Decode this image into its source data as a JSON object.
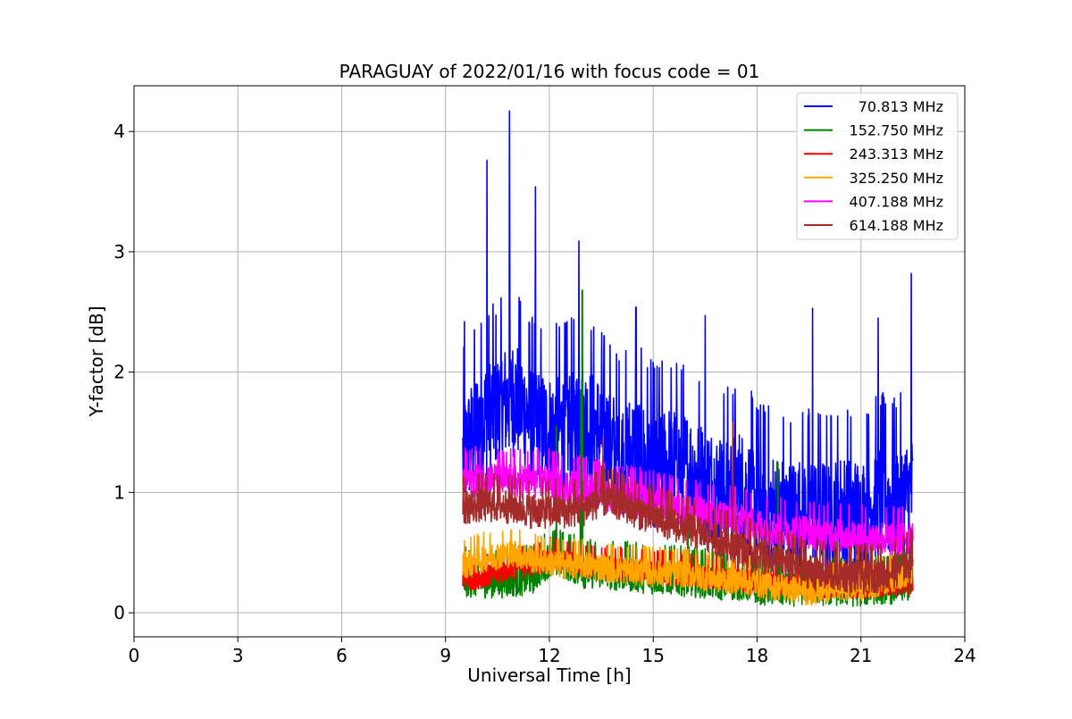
{
  "chart_data": {
    "type": "line",
    "title": "PARAGUAY of 2022/01/16 with focus code = 01",
    "xlabel": "Universal Time [h]",
    "ylabel": "Y-factor [dB]",
    "xlim": [
      0,
      24
    ],
    "ylim": [
      -0.2,
      4.38
    ],
    "xticks": [
      "0",
      "3",
      "6",
      "9",
      "12",
      "15",
      "18",
      "21",
      "24"
    ],
    "xtick_values": [
      0,
      3,
      6,
      9,
      12,
      15,
      18,
      21,
      24
    ],
    "yticks": [
      "0",
      "1",
      "2",
      "3",
      "4"
    ],
    "ytick_values": [
      0,
      1,
      2,
      3,
      4
    ],
    "grid": true,
    "legend_position": "top-right",
    "x_range_data": [
      9.5,
      22.5
    ],
    "series": [
      {
        "name": "70.813 MHz",
        "color": "#0000ff",
        "x": [
          9.5,
          10.0,
          10.5,
          11.0,
          11.5,
          12.0,
          12.5,
          13.0,
          13.5,
          14.0,
          14.5,
          15.0,
          15.5,
          16.0,
          16.5,
          17.0,
          17.5,
          18.0,
          18.5,
          19.0,
          19.5,
          20.0,
          20.5,
          21.0,
          21.5,
          22.0,
          22.5
        ],
        "values": [
          1.3,
          1.6,
          1.7,
          1.8,
          1.6,
          1.5,
          1.55,
          1.6,
          1.5,
          1.3,
          1.35,
          1.2,
          1.25,
          1.2,
          1.1,
          1.0,
          1.05,
          0.9,
          0.85,
          0.8,
          0.85,
          0.8,
          0.85,
          0.8,
          0.95,
          0.9,
          1.0
        ],
        "peaks": [
          [
            9.55,
            2.42
          ],
          [
            10.2,
            3.76
          ],
          [
            10.85,
            4.17
          ],
          [
            11.6,
            3.54
          ],
          [
            12.85,
            3.09
          ],
          [
            14.5,
            2.54
          ],
          [
            16.5,
            2.47
          ],
          [
            19.6,
            2.53
          ],
          [
            21.5,
            2.45
          ],
          [
            22.45,
            2.82
          ]
        ],
        "noise": 0.5
      },
      {
        "name": "152.750 MHz",
        "color": "#008000",
        "x": [
          9.5,
          10.0,
          10.5,
          11.0,
          11.5,
          12.0,
          12.5,
          13.0,
          13.5,
          14.0,
          14.5,
          15.0,
          15.5,
          16.0,
          16.5,
          17.0,
          17.5,
          18.0,
          18.5,
          19.0,
          19.5,
          20.0,
          20.5,
          21.0,
          21.5,
          22.0,
          22.5
        ],
        "values": [
          0.28,
          0.27,
          0.27,
          0.28,
          0.3,
          0.45,
          0.42,
          0.35,
          0.35,
          0.33,
          0.32,
          0.3,
          0.3,
          0.28,
          0.27,
          0.25,
          0.25,
          0.22,
          0.2,
          0.2,
          0.22,
          0.2,
          0.2,
          0.2,
          0.22,
          0.22,
          0.25
        ],
        "peaks": [
          [
            12.2,
            1.55
          ],
          [
            12.9,
            1.85
          ],
          [
            12.95,
            2.68
          ],
          [
            16.0,
            0.9
          ],
          [
            18.6,
            1.25
          ]
        ],
        "noise": 0.15
      },
      {
        "name": "243.313 MHz",
        "color": "#ff0000",
        "x": [
          9.5,
          10.0,
          10.5,
          11.0,
          11.5,
          12.0,
          12.5,
          13.0,
          13.5,
          14.0,
          14.5,
          15.0,
          15.5,
          16.0,
          16.5,
          17.0,
          17.5,
          18.0,
          18.5,
          19.0,
          19.5,
          20.0,
          20.5,
          21.0,
          21.5,
          22.0,
          22.5
        ],
        "values": [
          0.28,
          0.3,
          0.33,
          0.38,
          0.4,
          0.45,
          0.43,
          0.4,
          0.38,
          0.37,
          0.36,
          0.35,
          0.33,
          0.32,
          0.3,
          0.28,
          0.27,
          0.25,
          0.25,
          0.23,
          0.23,
          0.22,
          0.22,
          0.22,
          0.23,
          0.23,
          0.25
        ],
        "peaks": [],
        "noise": 0.1
      },
      {
        "name": "325.250 MHz",
        "color": "#ffa500",
        "x": [
          9.5,
          10.0,
          10.5,
          11.0,
          11.5,
          12.0,
          12.5,
          13.0,
          13.5,
          14.0,
          14.5,
          15.0,
          15.5,
          16.0,
          16.5,
          17.0,
          17.5,
          18.0,
          18.5,
          19.0,
          19.5,
          20.0,
          20.5,
          21.0,
          21.5,
          22.0,
          22.5
        ],
        "values": [
          0.4,
          0.45,
          0.48,
          0.5,
          0.45,
          0.42,
          0.4,
          0.4,
          0.38,
          0.36,
          0.35,
          0.34,
          0.33,
          0.33,
          0.3,
          0.28,
          0.27,
          0.25,
          0.22,
          0.2,
          0.18,
          0.2,
          0.22,
          0.22,
          0.25,
          0.3,
          0.35
        ],
        "peaks": [],
        "noise": 0.12
      },
      {
        "name": "407.188 MHz",
        "color": "#ff00ff",
        "x": [
          9.5,
          10.0,
          10.5,
          11.0,
          11.5,
          12.0,
          12.5,
          13.0,
          13.5,
          14.0,
          14.5,
          15.0,
          15.5,
          16.0,
          16.5,
          17.0,
          17.5,
          18.0,
          18.5,
          19.0,
          19.5,
          20.0,
          20.5,
          21.0,
          21.5,
          22.0,
          22.5
        ],
        "values": [
          1.1,
          1.12,
          1.1,
          1.1,
          1.1,
          1.1,
          1.05,
          1.05,
          1.0,
          0.98,
          0.95,
          0.92,
          0.88,
          0.85,
          0.82,
          0.8,
          0.78,
          0.72,
          0.7,
          0.68,
          0.68,
          0.65,
          0.65,
          0.63,
          0.62,
          0.62,
          0.65
        ],
        "peaks": [],
        "noise": 0.15
      },
      {
        "name": "614.188 MHz",
        "color": "#a52a2a",
        "x": [
          9.5,
          10.0,
          10.5,
          11.0,
          11.5,
          12.0,
          12.5,
          13.0,
          13.5,
          14.0,
          14.5,
          15.0,
          15.5,
          16.0,
          16.5,
          17.0,
          17.5,
          18.0,
          18.5,
          19.0,
          19.5,
          20.0,
          20.5,
          21.0,
          21.5,
          22.0,
          22.5
        ],
        "values": [
          0.88,
          0.9,
          0.9,
          0.88,
          0.85,
          0.85,
          0.85,
          0.87,
          0.95,
          0.92,
          0.85,
          0.8,
          0.75,
          0.7,
          0.65,
          0.6,
          0.55,
          0.5,
          0.45,
          0.4,
          0.35,
          0.33,
          0.32,
          0.3,
          0.32,
          0.35,
          0.45
        ],
        "peaks": [
          [
            13.55,
            1.45
          ],
          [
            17.3,
            1.58
          ]
        ],
        "noise": 0.15
      }
    ]
  }
}
